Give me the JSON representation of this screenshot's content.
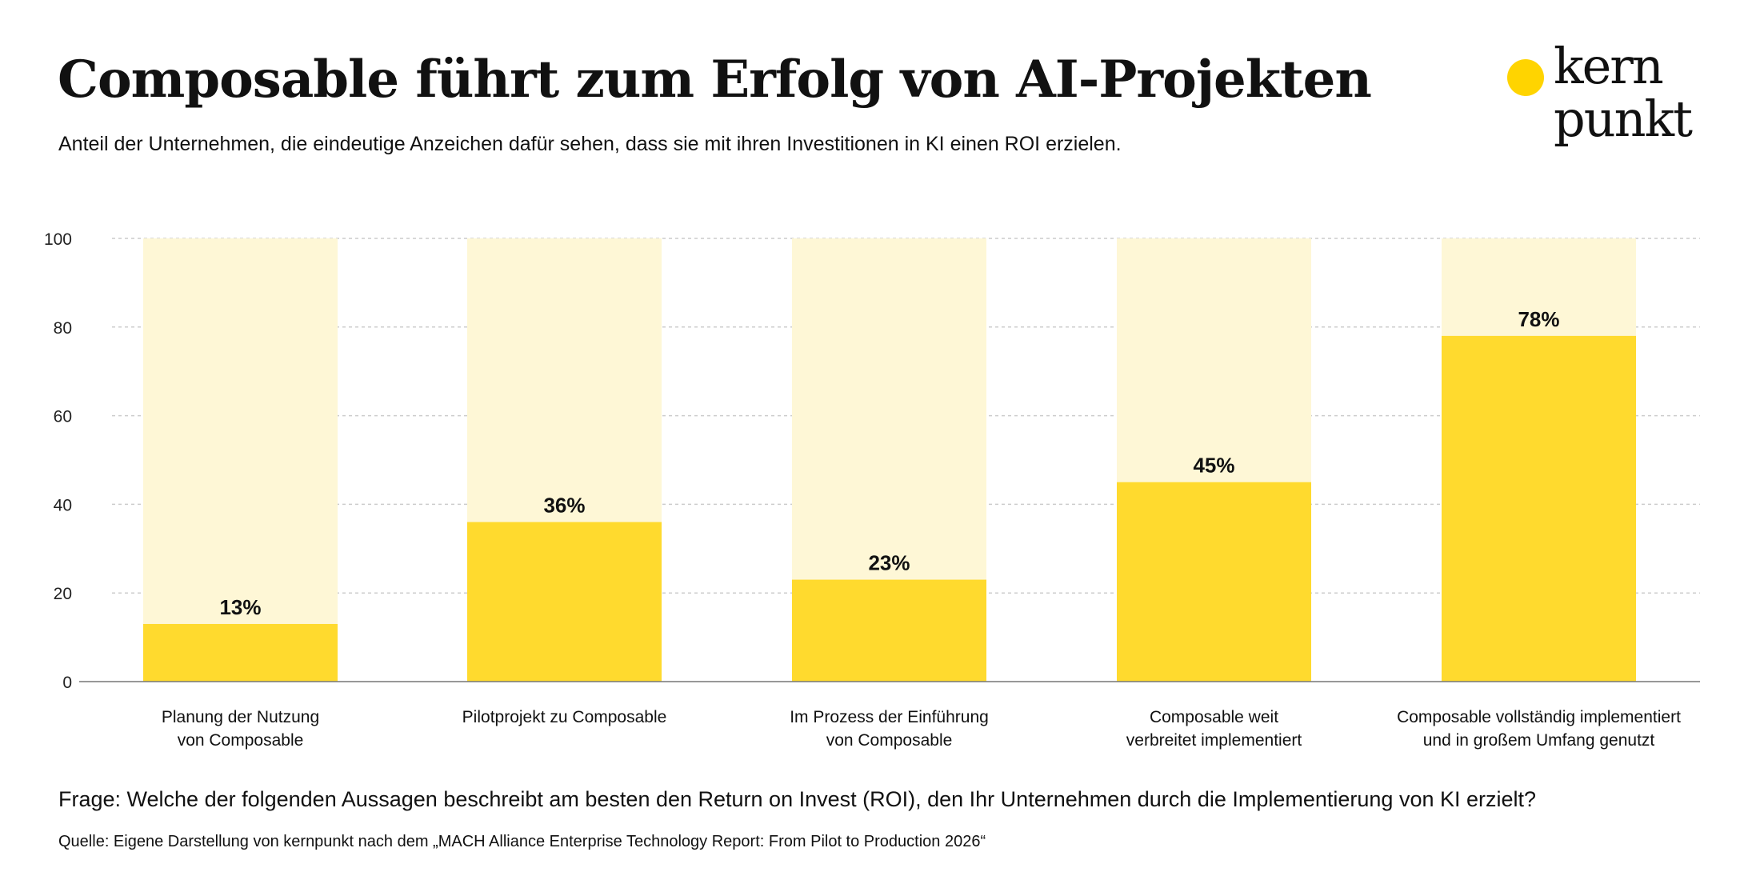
{
  "title": "Composable führt zum Erfolg von AI-Projekten",
  "subtitle": "Anteil der Unternehmen, die eindeutige Anzeichen dafür sehen, dass sie mit ihren Investitionen in KI einen ROI erzielen.",
  "logo": {
    "line1": "kern",
    "line2": "punkt",
    "dot_color": "#FFD400"
  },
  "chart_data": {
    "type": "bar",
    "categories": [
      [
        "Planung der Nutzung",
        "von Composable"
      ],
      [
        "Pilotprojekt zu Composable"
      ],
      [
        "Im Prozess der Einführung",
        "von Composable"
      ],
      [
        "Composable weit",
        "verbreitet implementiert"
      ],
      [
        "Composable vollständig implementiert",
        "und in großem Umfang genutzt"
      ]
    ],
    "values": [
      13,
      36,
      23,
      45,
      78
    ],
    "data_labels": [
      "13%",
      "36%",
      "23%",
      "45%",
      "78%"
    ],
    "ylim": [
      0,
      100
    ],
    "yticks": [
      0,
      20,
      40,
      60,
      80,
      100
    ],
    "grid": true,
    "bar_color": "#FFDA2E",
    "track_color": "#FEF7D6"
  },
  "question": "Frage: Welche der folgenden Aussagen beschreibt am besten den Return on Invest (ROI), den Ihr Unternehmen durch die Implementierung von KI erzielt?",
  "source": "Quelle: Eigene Darstellung von kernpunkt nach dem „MACH Alliance Enterprise Technology Report: From Pilot to Production 2026“"
}
